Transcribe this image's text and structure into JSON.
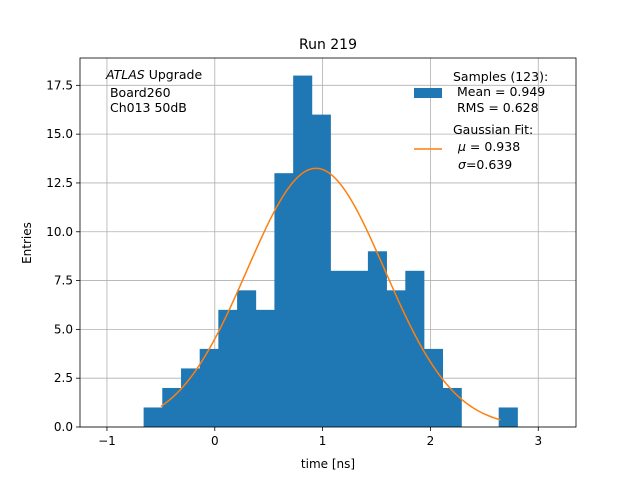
{
  "chart_data": {
    "type": "bar",
    "title": "Run 219",
    "xlabel": "time [ns]",
    "ylabel": "Entries",
    "xlim": [
      -1.25,
      3.35
    ],
    "ylim": [
      0,
      18.9
    ],
    "grid": true,
    "xticks": [
      -1,
      0,
      1,
      2,
      3
    ],
    "xtick_labels": [
      "−1",
      "0",
      "1",
      "2",
      "3"
    ],
    "yticks": [
      0.0,
      2.5,
      5.0,
      7.5,
      10.0,
      12.5,
      15.0,
      17.5
    ],
    "ytick_labels": [
      "0.0",
      "2.5",
      "5.0",
      "7.5",
      "10.0",
      "12.5",
      "15.0",
      "17.5"
    ],
    "histogram": {
      "name": "Samples (123):",
      "color": "#1f77b4",
      "bin_edges": [
        -0.66,
        -0.487,
        -0.313,
        -0.14,
        0.033,
        0.207,
        0.38,
        0.553,
        0.727,
        0.9,
        1.073,
        1.247,
        1.42,
        1.593,
        1.767,
        1.94,
        2.113,
        2.287,
        2.46,
        2.633,
        2.807
      ],
      "counts": [
        1,
        2,
        3,
        4,
        6,
        7,
        6,
        13,
        18,
        16,
        8,
        8,
        9,
        7,
        8,
        4,
        2,
        0,
        0,
        1
      ]
    },
    "fit": {
      "name": "Gaussian Fit:",
      "color": "#ff7f0e",
      "amplitude": 13.25,
      "mu": 0.938,
      "sigma": 0.639,
      "x_range": [
        -0.5,
        2.65
      ]
    },
    "legend": {
      "placement": "top-right",
      "entries": [
        {
          "line1": "Samples (123):",
          "line2": " Mean = 0.949",
          "line3": " RMS = 0.628"
        },
        {
          "line1": "Gaussian Fit:",
          "line2_sym": "μ",
          "line2_rest": " = 0.938",
          "line3_sym": "σ",
          "line3_rest": "=0.639"
        }
      ]
    },
    "annotation": {
      "italic": "ATLAS",
      "rest": " Upgrade",
      "line2": " Board260",
      "line3": " Ch013 50dB"
    }
  }
}
